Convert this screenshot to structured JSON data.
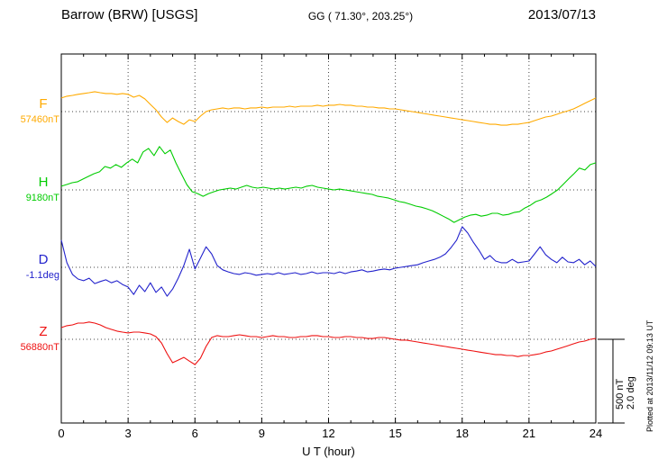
{
  "header": {
    "station": "Barrow (BRW)  [USGS]",
    "coords": "GG ( 71.30°, 203.25°)",
    "date": "2013/07/13"
  },
  "footer": {
    "xlabel": "U T (hour)"
  },
  "side": {
    "scale_nt": "500 nT",
    "scale_deg": "2.0 deg",
    "plotted_note": "Plotted at 2013/11/12 09:13 UT"
  },
  "chart_data": {
    "type": "line",
    "title": "Barrow (BRW) [USGS] magnetogram 2013/07/13",
    "xlabel": "U T (hour)",
    "x_range_hours": [
      0,
      24
    ],
    "x_ticks": [
      0,
      3,
      6,
      9,
      12,
      15,
      18,
      21,
      24
    ],
    "grid": "dotted vertical at 3h intervals; dotted horizontal baseline per trace",
    "scale": {
      "nT_per_division": 500,
      "deg_per_division": 2.0
    },
    "note": "delta arrays are deviations from each trace baseline, evenly sampled 0-24h UT",
    "series": [
      {
        "name": "F",
        "units": "nT",
        "baseline_label": "57460nT",
        "baseline_value": 57460,
        "color": "#FFAA00",
        "delta": [
          81,
          92,
          97,
          103,
          108,
          113,
          119,
          113,
          108,
          108,
          103,
          108,
          103,
          86,
          97,
          76,
          43,
          11,
          -32,
          -65,
          -38,
          -59,
          -76,
          -49,
          -59,
          -27,
          0,
          11,
          16,
          22,
          16,
          22,
          22,
          16,
          22,
          22,
          27,
          22,
          27,
          27,
          27,
          32,
          27,
          32,
          32,
          32,
          38,
          32,
          38,
          38,
          43,
          38,
          38,
          32,
          32,
          27,
          27,
          22,
          22,
          16,
          16,
          11,
          5,
          0,
          -5,
          -11,
          -16,
          -22,
          -27,
          -32,
          -38,
          -43,
          -49,
          -54,
          -59,
          -65,
          -70,
          -76,
          -76,
          -81,
          -81,
          -76,
          -76,
          -70,
          -65,
          -54,
          -43,
          -32,
          -27,
          -16,
          -5,
          5,
          16,
          32,
          49,
          65,
          81
        ]
      },
      {
        "name": "H",
        "units": "nT",
        "baseline_label": "9180nT",
        "baseline_value": 9180,
        "color": "#00CC00",
        "delta": [
          22,
          32,
          43,
          49,
          65,
          81,
          97,
          108,
          140,
          130,
          151,
          135,
          162,
          184,
          162,
          227,
          248,
          205,
          259,
          216,
          238,
          162,
          97,
          32,
          -11,
          -22,
          -38,
          -22,
          -11,
          0,
          5,
          11,
          5,
          16,
          27,
          16,
          11,
          16,
          11,
          5,
          11,
          5,
          11,
          16,
          11,
          22,
          27,
          16,
          11,
          5,
          0,
          5,
          0,
          -5,
          -11,
          -16,
          -22,
          -27,
          -38,
          -43,
          -49,
          -59,
          -70,
          -76,
          -86,
          -97,
          -103,
          -113,
          -124,
          -140,
          -157,
          -173,
          -194,
          -178,
          -162,
          -151,
          -146,
          -157,
          -151,
          -140,
          -140,
          -151,
          -146,
          -135,
          -130,
          -108,
          -92,
          -70,
          -59,
          -43,
          -22,
          0,
          32,
          65,
          97,
          130,
          119,
          151,
          162
        ]
      },
      {
        "name": "D",
        "units": "deg",
        "baseline_label": "-1.1deg",
        "baseline_value": -1.1,
        "color": "#2222CC",
        "delta": [
          0.65,
          0.11,
          -0.17,
          -0.28,
          -0.32,
          -0.26,
          -0.39,
          -0.34,
          -0.3,
          -0.37,
          -0.32,
          -0.41,
          -0.47,
          -0.65,
          -0.43,
          -0.58,
          -0.37,
          -0.6,
          -0.47,
          -0.69,
          -0.52,
          -0.26,
          0.04,
          0.43,
          -0.04,
          0.22,
          0.49,
          0.32,
          0.04,
          -0.06,
          -0.11,
          -0.15,
          -0.17,
          -0.13,
          -0.15,
          -0.19,
          -0.17,
          -0.15,
          -0.17,
          -0.13,
          -0.17,
          -0.15,
          -0.13,
          -0.17,
          -0.15,
          -0.11,
          -0.15,
          -0.13,
          -0.13,
          -0.15,
          -0.11,
          -0.15,
          -0.11,
          -0.09,
          -0.06,
          -0.11,
          -0.09,
          -0.06,
          -0.04,
          -0.06,
          -0.02,
          0.0,
          0.02,
          0.04,
          0.06,
          0.11,
          0.15,
          0.19,
          0.24,
          0.32,
          0.47,
          0.65,
          0.97,
          0.82,
          0.6,
          0.41,
          0.19,
          0.28,
          0.15,
          0.11,
          0.11,
          0.19,
          0.11,
          0.13,
          0.15,
          0.32,
          0.49,
          0.3,
          0.19,
          0.11,
          0.24,
          0.13,
          0.11,
          0.19,
          0.06,
          0.15,
          0.02
        ]
      },
      {
        "name": "Z",
        "units": "nT",
        "baseline_label": "56880nT",
        "baseline_value": 56880,
        "color": "#EE1111",
        "delta": [
          70,
          81,
          86,
          97,
          97,
          103,
          97,
          86,
          70,
          59,
          49,
          43,
          38,
          43,
          43,
          38,
          32,
          16,
          -22,
          -86,
          -140,
          -124,
          -108,
          -130,
          -151,
          -113,
          -43,
          11,
          22,
          16,
          16,
          22,
          27,
          22,
          16,
          16,
          11,
          16,
          22,
          16,
          16,
          11,
          11,
          16,
          16,
          22,
          22,
          16,
          16,
          11,
          11,
          16,
          16,
          11,
          11,
          5,
          5,
          11,
          11,
          5,
          0,
          -5,
          -5,
          -11,
          -16,
          -22,
          -27,
          -32,
          -38,
          -43,
          -49,
          -54,
          -59,
          -65,
          -70,
          -76,
          -81,
          -86,
          -92,
          -92,
          -97,
          -97,
          -103,
          -97,
          -97,
          -92,
          -86,
          -76,
          -70,
          -59,
          -49,
          -38,
          -27,
          -16,
          -11,
          0,
          5
        ]
      }
    ]
  }
}
